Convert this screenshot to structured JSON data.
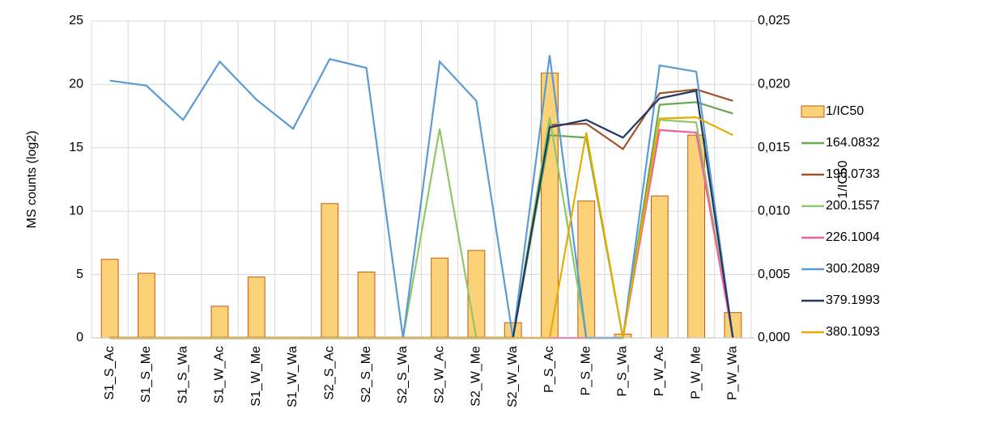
{
  "chart_data": {
    "type": "combo",
    "y_label": "MS counts (log2)",
    "y2_label": "1/IC50",
    "categories": [
      "S1_S_Ac",
      "S1_S_Me",
      "S1_S_Wa",
      "S1_W_Ac",
      "S1_W_Me",
      "S1_W_Wa",
      "S2_S_Ac",
      "S2_S_Me",
      "S2_S_Wa",
      "S2_W_Ac",
      "S2_W_Me",
      "S2_W_Wa",
      "P_S_Ac",
      "P_S_Me",
      "P_S_Wa",
      "P_W_Ac",
      "P_W_Me",
      "P_W_Wa"
    ],
    "ylim": [
      0,
      25
    ],
    "yticks": [
      0,
      5,
      10,
      15,
      20,
      25
    ],
    "y2lim": [
      0,
      0.025
    ],
    "y2ticks": [
      {
        "value": 0,
        "label": "0,000"
      },
      {
        "value": 0.005,
        "label": "0,005"
      },
      {
        "value": 0.01,
        "label": "0,010"
      },
      {
        "value": 0.015,
        "label": "0,015"
      },
      {
        "value": 0.02,
        "label": "0,020"
      },
      {
        "value": 0.025,
        "label": "0,025"
      }
    ],
    "grid": true,
    "legend": "right",
    "series": [
      {
        "name": "1/IC50",
        "type": "bar",
        "axis": "y2",
        "color": "#fbd278",
        "values": [
          0.0062,
          0.0051,
          0,
          0.0025,
          0.0048,
          0,
          0.0106,
          0.0052,
          0,
          0.0063,
          0.0069,
          0.0012,
          0.0209,
          0.0108,
          0.0003,
          0.0112,
          0.016,
          0.002
        ]
      },
      {
        "name": "164.0832",
        "type": "line",
        "color": "#6aa84f",
        "values": [
          0,
          0,
          0,
          0,
          0,
          0,
          0,
          0,
          0,
          0,
          0,
          0,
          16.0,
          15.8,
          0,
          18.4,
          18.6,
          17.7
        ]
      },
      {
        "name": "196.0733",
        "type": "line",
        "color": "#a0522d",
        "values": [
          0,
          0,
          0,
          0,
          0,
          0,
          0,
          0,
          0,
          0,
          0,
          0,
          16.8,
          16.9,
          14.9,
          19.3,
          19.6,
          18.7
        ]
      },
      {
        "name": "200.1557",
        "type": "line",
        "color": "#8fc965",
        "values": [
          0,
          0,
          0,
          0,
          0,
          0,
          0,
          0,
          0,
          16.5,
          0,
          0,
          17.4,
          0,
          0,
          17.2,
          17.0,
          0
        ]
      },
      {
        "name": "226.1004",
        "type": "line",
        "color": "#f0609e",
        "values": [
          0,
          0,
          0,
          0,
          0,
          0,
          0,
          0,
          0,
          0,
          0,
          0,
          0,
          0,
          0,
          16.4,
          16.2,
          0
        ]
      },
      {
        "name": "300.2089",
        "type": "line",
        "color": "#5b9bd5",
        "values": [
          20.3,
          19.9,
          17.2,
          21.8,
          18.8,
          16.5,
          22.0,
          21.3,
          0,
          21.8,
          18.7,
          0,
          22.3,
          0,
          0,
          21.5,
          21.0,
          0
        ]
      },
      {
        "name": "379.1993",
        "type": "line",
        "color": "#203864",
        "values": [
          0,
          0,
          0,
          0,
          0,
          0,
          0,
          0,
          0,
          0,
          0,
          0,
          16.6,
          17.2,
          15.8,
          18.9,
          19.5,
          0
        ]
      },
      {
        "name": "380.1093",
        "type": "line",
        "color": "#e6ac00",
        "values": [
          0,
          0,
          0,
          0,
          0,
          0,
          0,
          0,
          0,
          0,
          0,
          0,
          0,
          16.2,
          0,
          17.3,
          17.4,
          16.0
        ]
      }
    ]
  }
}
